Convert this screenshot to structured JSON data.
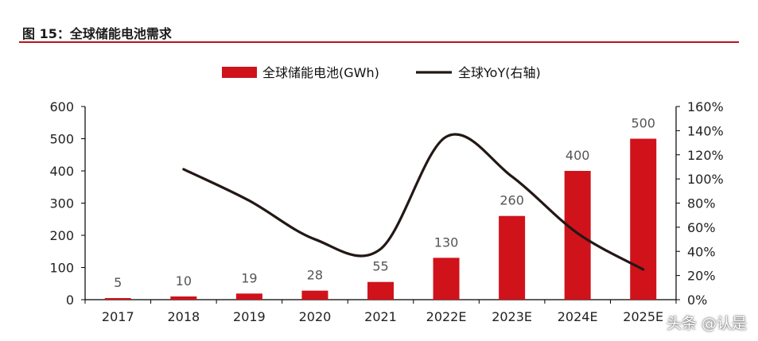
{
  "header": {
    "title": "图 15：全球储能电池需求"
  },
  "watermark": "头条 @认是",
  "chart_data": {
    "type": "bar",
    "categories": [
      "2017",
      "2018",
      "2019",
      "2020",
      "2021",
      "2022E",
      "2023E",
      "2024E",
      "2025E"
    ],
    "series": [
      {
        "name": "全球储能电池(GWh)",
        "type": "bar",
        "axis": "left",
        "color": "#d0121b",
        "values": [
          5,
          10,
          19,
          28,
          55,
          130,
          260,
          400,
          500
        ]
      },
      {
        "name": "全球YoY(右轴)",
        "type": "line",
        "axis": "right",
        "color": "#231815",
        "values": [
          null,
          1.08,
          0.82,
          0.5,
          0.42,
          1.35,
          1.02,
          0.55,
          0.25
        ]
      }
    ],
    "data_labels": [
      "5",
      "10",
      "19",
      "28",
      "55",
      "130",
      "260",
      "400",
      "500"
    ],
    "y_left": {
      "min": 0,
      "max": 600,
      "ticks": [
        0,
        100,
        200,
        300,
        400,
        500,
        600
      ]
    },
    "y_right": {
      "min": 0,
      "max": 1.6,
      "ticks": [
        "0%",
        "20%",
        "40%",
        "60%",
        "80%",
        "100%",
        "120%",
        "140%",
        "160%"
      ]
    },
    "legend_position": "top-center",
    "grid": false
  }
}
